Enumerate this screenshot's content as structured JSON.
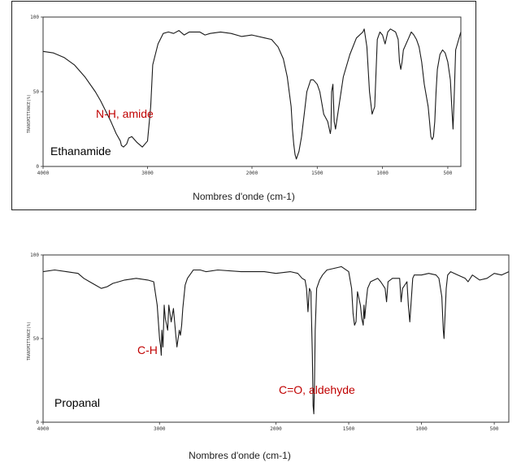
{
  "chart_data": [
    {
      "type": "line",
      "title": "Ethanamide",
      "xlabel": "Nombres d'onde (cm-1)",
      "ylabel": "TRANSMITTANCE(%)",
      "x_reversed": true,
      "xlim": [
        4000,
        400
      ],
      "ylim": [
        0,
        100
      ],
      "x_ticks": [
        4000,
        3000,
        2000,
        1500,
        1000,
        500
      ],
      "y_ticks": [
        0,
        50,
        100
      ],
      "annotations": [
        {
          "text": "N-H, amide",
          "x": 3200,
          "y": 34,
          "color": "#c00000"
        }
      ],
      "series": [
        {
          "x": [
            4000,
            3900,
            3800,
            3700,
            3600,
            3500,
            3450,
            3400,
            3350,
            3300,
            3260,
            3250,
            3230,
            3200,
            3180,
            3150,
            3100,
            3050,
            3000,
            2970,
            2950,
            2900,
            2850,
            2800,
            2750,
            2700,
            2650,
            2600,
            2500,
            2450,
            2400,
            2300,
            2200,
            2100,
            2000,
            1900,
            1850,
            1800,
            1760,
            1730,
            1700,
            1690,
            1680,
            1670,
            1660,
            1640,
            1620,
            1600,
            1580,
            1550,
            1530,
            1500,
            1480,
            1450,
            1420,
            1400,
            1395,
            1390,
            1380,
            1370,
            1360,
            1300,
            1250,
            1200,
            1150,
            1140,
            1120,
            1100,
            1080,
            1060,
            1040,
            1020,
            1000,
            980,
            960,
            940,
            900,
            880,
            870,
            860,
            850,
            840,
            800,
            780,
            760,
            740,
            720,
            700,
            680,
            650,
            640,
            630,
            620,
            610,
            600,
            590,
            580,
            560,
            540,
            520,
            500,
            480,
            470,
            460,
            450,
            440,
            420,
            400
          ],
          "y": [
            77,
            76,
            73,
            68,
            60,
            50,
            44,
            37,
            30,
            22,
            17,
            14,
            13,
            15,
            19,
            20,
            16,
            13,
            17,
            40,
            68,
            82,
            89,
            90,
            89,
            91,
            88,
            90,
            90,
            88,
            89,
            90,
            89,
            87,
            88,
            86,
            85,
            80,
            72,
            60,
            40,
            25,
            15,
            8,
            5,
            10,
            20,
            35,
            50,
            58,
            58,
            55,
            50,
            35,
            30,
            22,
            25,
            50,
            55,
            30,
            25,
            60,
            75,
            86,
            90,
            92,
            80,
            50,
            35,
            40,
            85,
            90,
            88,
            82,
            90,
            92,
            90,
            85,
            70,
            65,
            70,
            78,
            86,
            90,
            88,
            85,
            80,
            70,
            55,
            40,
            30,
            20,
            18,
            20,
            30,
            50,
            65,
            75,
            78,
            76,
            70,
            58,
            40,
            25,
            50,
            78,
            84,
            90
          ]
        }
      ]
    },
    {
      "type": "line",
      "title": "Propanal",
      "xlabel": "Nombres d'onde (cm-1)",
      "ylabel": "TRANSMITTANCE(%)",
      "x_reversed": true,
      "xlim": [
        4000,
        400
      ],
      "ylim": [
        0,
        100
      ],
      "x_ticks": [
        4000,
        3000,
        2000,
        1500,
        1000,
        500
      ],
      "y_ticks": [
        0,
        50,
        100
      ],
      "annotations": [
        {
          "text": "C-H",
          "x": 2960,
          "y": 40,
          "color": "#c00000"
        },
        {
          "text": "C=O, aldehyde",
          "x": 1650,
          "y": 20,
          "color": "#c00000"
        }
      ],
      "series": [
        {
          "x": [
            4000,
            3900,
            3800,
            3700,
            3650,
            3600,
            3550,
            3500,
            3450,
            3400,
            3350,
            3300,
            3200,
            3100,
            3050,
            3020,
            3000,
            2990,
            2985,
            2980,
            2970,
            2960,
            2950,
            2930,
            2920,
            2900,
            2880,
            2860,
            2850,
            2830,
            2820,
            2810,
            2800,
            2780,
            2760,
            2740,
            2720,
            2710,
            2700,
            2650,
            2600,
            2500,
            2300,
            2100,
            2000,
            1900,
            1850,
            1820,
            1800,
            1790,
            1780,
            1770,
            1760,
            1750,
            1745,
            1740,
            1735,
            1730,
            1720,
            1700,
            1680,
            1650,
            1600,
            1550,
            1500,
            1480,
            1470,
            1460,
            1450,
            1440,
            1420,
            1410,
            1400,
            1395,
            1390,
            1380,
            1370,
            1350,
            1300,
            1280,
            1250,
            1240,
            1230,
            1200,
            1150,
            1140,
            1130,
            1100,
            1090,
            1080,
            1060,
            1050,
            1000,
            950,
            900,
            880,
            860,
            850,
            845,
            840,
            830,
            820,
            800,
            750,
            700,
            680,
            650,
            600,
            550,
            500,
            450,
            400
          ],
          "y": [
            90,
            91,
            90,
            89,
            86,
            84,
            82,
            80,
            81,
            83,
            84,
            85,
            86,
            85,
            84,
            70,
            50,
            45,
            40,
            55,
            45,
            70,
            62,
            55,
            70,
            60,
            68,
            52,
            45,
            55,
            52,
            58,
            68,
            82,
            86,
            88,
            90,
            91,
            91,
            91,
            90,
            91,
            90,
            90,
            89,
            90,
            89,
            86,
            85,
            80,
            66,
            80,
            78,
            40,
            10,
            5,
            25,
            55,
            80,
            85,
            88,
            91,
            92,
            93,
            90,
            80,
            65,
            58,
            60,
            78,
            70,
            62,
            58,
            70,
            62,
            72,
            80,
            84,
            86,
            84,
            80,
            72,
            84,
            86,
            86,
            72,
            80,
            84,
            70,
            60,
            86,
            88,
            88,
            89,
            88,
            86,
            75,
            55,
            50,
            60,
            80,
            88,
            90,
            88,
            86,
            84,
            88,
            85,
            86,
            89,
            88,
            90
          ]
        }
      ]
    }
  ]
}
